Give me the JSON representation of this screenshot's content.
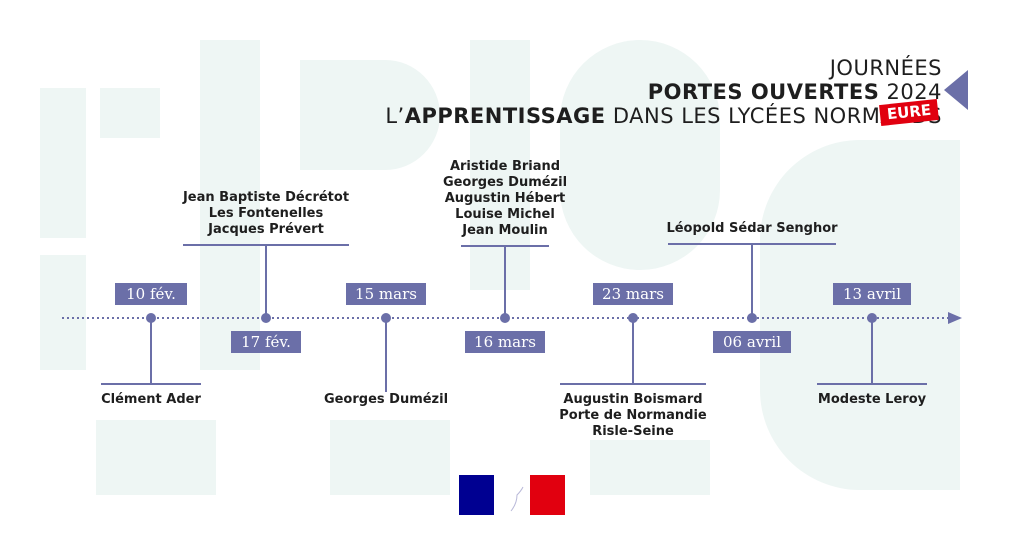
{
  "header": {
    "line1": "JOURNÉES",
    "line2_bold": "PORTES OUVERTES",
    "line2_year": "2024",
    "line3_prefix": "L’",
    "line3_bold": "APPRENTISSAGE",
    "line3_rest": "DANS LES LYCÉES NORMANDS",
    "badge": "EURE"
  },
  "colors": {
    "accent": "#6b6fa8",
    "badge": "#e1000f",
    "watermark": "#eef6f4",
    "text": "#1e1e1e"
  },
  "timeline": {
    "events": [
      {
        "date": "10 fév.",
        "sites": [
          "Clément Ader"
        ]
      },
      {
        "date": "17 fév.",
        "sites": [
          "Jean Baptiste Décrétot",
          "Les Fontenelles",
          "Jacques Prévert"
        ]
      },
      {
        "date": "15 mars",
        "sites": [
          "Georges Dumézil"
        ]
      },
      {
        "date": "16 mars",
        "sites": [
          "Aristide Briand",
          "Georges Dumézil",
          "Augustin Hébert",
          "Louise Michel",
          "Jean Moulin"
        ]
      },
      {
        "date": "23 mars",
        "sites": [
          "Augustin Boismard",
          "Porte de Normandie",
          "Risle-Seine"
        ]
      },
      {
        "date": "06 avril",
        "sites": [
          "Léopold Sédar Senghor"
        ]
      },
      {
        "date": "13 avril",
        "sites": [
          "Modeste Leroy"
        ]
      }
    ]
  },
  "footer": {
    "logo": "marianne-logo"
  }
}
